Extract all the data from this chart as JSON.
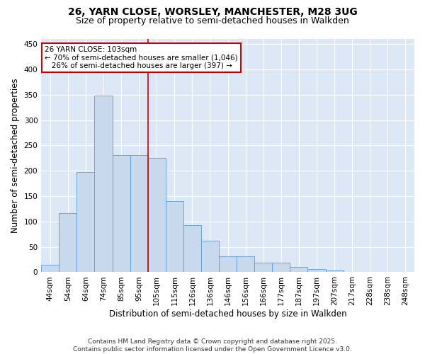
{
  "title_line1": "26, YARN CLOSE, WORSLEY, MANCHESTER, M28 3UG",
  "title_line2": "Size of property relative to semi-detached houses in Walkden",
  "xlabel": "Distribution of semi-detached houses by size in Walkden",
  "ylabel": "Number of semi-detached properties",
  "categories": [
    "44sqm",
    "54sqm",
    "64sqm",
    "74sqm",
    "85sqm",
    "95sqm",
    "105sqm",
    "115sqm",
    "126sqm",
    "136sqm",
    "146sqm",
    "156sqm",
    "166sqm",
    "177sqm",
    "187sqm",
    "197sqm",
    "207sqm",
    "217sqm",
    "228sqm",
    "238sqm",
    "248sqm"
  ],
  "values": [
    15,
    117,
    197,
    348,
    231,
    231,
    225,
    140,
    93,
    62,
    32,
    32,
    19,
    19,
    10,
    6,
    3,
    1,
    1,
    1,
    1
  ],
  "bar_color": "#c8d9ee",
  "bar_edge_color": "#5b9bd5",
  "vline_x": 6,
  "vline_color": "#cc0000",
  "annotation_line1": "26 YARN CLOSE: 103sqm",
  "annotation_line2": "← 70% of semi-detached houses are smaller (1,046)",
  "annotation_line3": "   26% of semi-detached houses are larger (397) →",
  "annotation_box_color": "#ffffff",
  "annotation_box_edge_color": "#cc0000",
  "ylim": [
    0,
    460
  ],
  "yticks": [
    0,
    50,
    100,
    150,
    200,
    250,
    300,
    350,
    400,
    450
  ],
  "background_color": "#dce8f5",
  "footer_text": "Contains HM Land Registry data © Crown copyright and database right 2025.\nContains public sector information licensed under the Open Government Licence v3.0.",
  "title_fontsize": 10,
  "subtitle_fontsize": 9,
  "axis_label_fontsize": 8.5,
  "tick_fontsize": 7.5,
  "annotation_fontsize": 7.5,
  "footer_fontsize": 6.5
}
